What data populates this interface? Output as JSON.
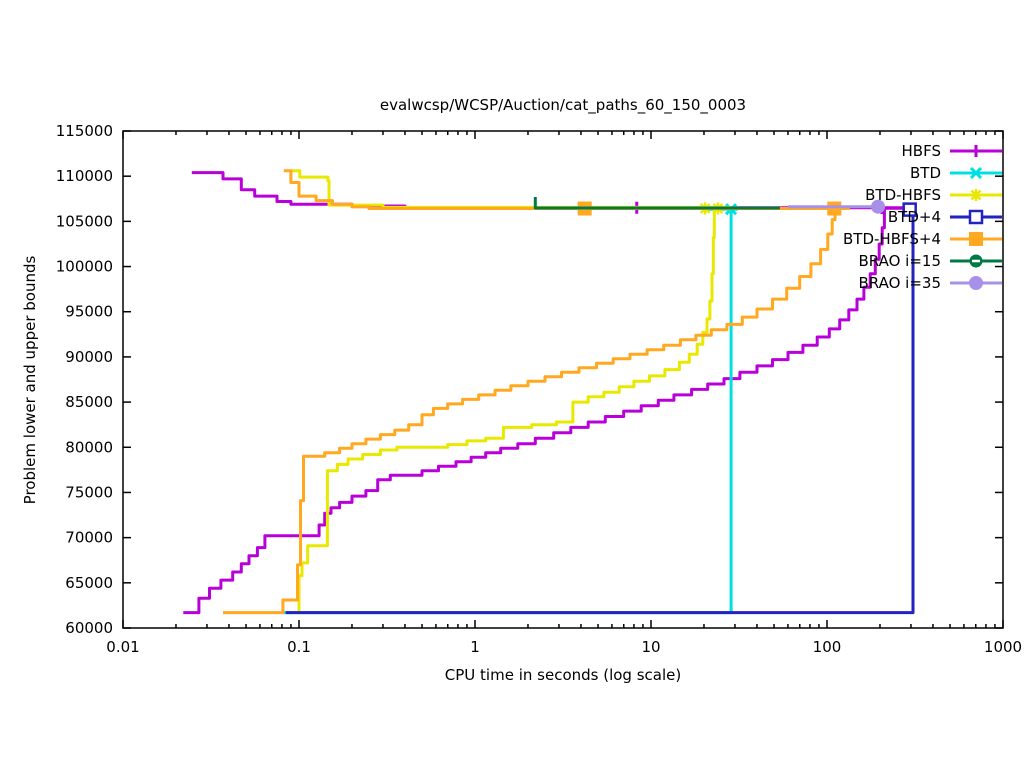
{
  "chart_data": {
    "type": "line",
    "title": "evalwcsp/WCSP/Auction/cat_paths_60_150_0003",
    "xlabel": "CPU time in seconds (log scale)",
    "ylabel": "Problem lower and upper bounds",
    "x_scale": "log",
    "xlim": [
      0.01,
      1000
    ],
    "ylim": [
      60000,
      115000
    ],
    "grid": false,
    "legend_position": "top-right-inside",
    "background_color": "#ffffff",
    "border_color": "#000000",
    "text_color": "#000000",
    "x_ticks": [
      {
        "value": 0.01,
        "label": "0.01"
      },
      {
        "value": 0.1,
        "label": "0.1"
      },
      {
        "value": 1,
        "label": "1"
      },
      {
        "value": 10,
        "label": "10"
      },
      {
        "value": 100,
        "label": "100"
      },
      {
        "value": 1000,
        "label": "1000"
      }
    ],
    "y_ticks": [
      {
        "value": 60000,
        "label": "60000"
      },
      {
        "value": 65000,
        "label": "65000"
      },
      {
        "value": 70000,
        "label": "70000"
      },
      {
        "value": 75000,
        "label": "75000"
      },
      {
        "value": 80000,
        "label": "80000"
      },
      {
        "value": 85000,
        "label": "85000"
      },
      {
        "value": 90000,
        "label": "90000"
      },
      {
        "value": 95000,
        "label": "95000"
      },
      {
        "value": 100000,
        "label": "100000"
      },
      {
        "value": 105000,
        "label": "105000"
      },
      {
        "value": 110000,
        "label": "110000"
      },
      {
        "value": 115000,
        "label": "115000"
      }
    ],
    "series": [
      {
        "name": "HBFS",
        "color": "#b800d8",
        "marker": "plus",
        "markers_at": [
          [
            8.3,
            106500
          ],
          [
            205,
            106480
          ]
        ],
        "paths": [
          {
            "steps": true,
            "points": [
              [
                0.0246,
                110400
              ],
              [
                0.037,
                109700
              ],
              [
                0.047,
                108500
              ],
              [
                0.056,
                107800
              ],
              [
                0.075,
                107200
              ],
              [
                0.09,
                106900
              ],
              [
                0.2,
                106700
              ],
              [
                0.4,
                106500
              ],
              [
                290,
                106500
              ]
            ]
          },
          {
            "steps": true,
            "points": [
              [
                0.022,
                61700
              ],
              [
                0.027,
                63300
              ],
              [
                0.031,
                64400
              ],
              [
                0.036,
                65300
              ],
              [
                0.042,
                66200
              ],
              [
                0.047,
                67100
              ],
              [
                0.052,
                68000
              ],
              [
                0.058,
                68900
              ],
              [
                0.064,
                70200
              ],
              [
                0.13,
                71400
              ],
              [
                0.14,
                72700
              ],
              [
                0.152,
                73300
              ],
              [
                0.17,
                73900
              ],
              [
                0.2,
                74600
              ],
              [
                0.24,
                75200
              ],
              [
                0.28,
                76400
              ],
              [
                0.33,
                76900
              ],
              [
                0.5,
                77400
              ],
              [
                0.62,
                77900
              ],
              [
                0.78,
                78400
              ],
              [
                0.95,
                78900
              ],
              [
                1.15,
                79400
              ],
              [
                1.4,
                79900
              ],
              [
                1.75,
                80400
              ],
              [
                2.2,
                81000
              ],
              [
                2.8,
                81600
              ],
              [
                3.5,
                82200
              ],
              [
                4.4,
                82800
              ],
              [
                5.5,
                83400
              ],
              [
                7,
                84000
              ],
              [
                8.8,
                84600
              ],
              [
                11,
                85200
              ],
              [
                13.5,
                85800
              ],
              [
                17,
                86400
              ],
              [
                21,
                87000
              ],
              [
                26,
                87600
              ],
              [
                32,
                88300
              ],
              [
                40,
                89000
              ],
              [
                49,
                89700
              ],
              [
                60,
                90500
              ],
              [
                73,
                91300
              ],
              [
                88,
                92200
              ],
              [
                103,
                93100
              ],
              [
                118,
                94100
              ],
              [
                133,
                95200
              ],
              [
                148,
                96400
              ],
              [
                162,
                97700
              ],
              [
                176,
                99200
              ],
              [
                188,
                100800
              ],
              [
                198,
                102500
              ],
              [
                206,
                104300
              ],
              [
                212,
                106450
              ],
              [
                290,
                106450
              ]
            ]
          }
        ]
      },
      {
        "name": "BTD",
        "color": "#00e0e0",
        "marker": "x",
        "markers_at": [
          [
            28.5,
            106350
          ]
        ],
        "paths": [
          {
            "steps": true,
            "points": [
              [
                0.08,
                61700
              ],
              [
                28.5,
                106350
              ]
            ]
          },
          {
            "steps": false,
            "points": [
              [
                20,
                106350
              ],
              [
                31,
                106350
              ]
            ]
          }
        ]
      },
      {
        "name": "BTD-HBFS",
        "color": "#e8e800",
        "marker": "asterisk",
        "markers_at": [
          [
            20.3,
            106420
          ],
          [
            24,
            106420
          ]
        ],
        "paths": [
          {
            "steps": true,
            "points": [
              [
                0.09,
                110600
              ],
              [
                0.101,
                109900
              ],
              [
                0.146,
                109500
              ],
              [
                0.148,
                106800
              ],
              [
                0.3,
                106550
              ],
              [
                28.5,
                106550
              ]
            ]
          },
          {
            "steps": true,
            "points": [
              [
                0.095,
                61700
              ],
              [
                0.1,
                65800
              ],
              [
                0.104,
                67200
              ],
              [
                0.112,
                69100
              ],
              [
                0.145,
                77400
              ],
              [
                0.165,
                78100
              ],
              [
                0.19,
                78700
              ],
              [
                0.23,
                79200
              ],
              [
                0.29,
                79700
              ],
              [
                0.36,
                80000
              ],
              [
                0.7,
                80300
              ],
              [
                0.9,
                80700
              ],
              [
                1.15,
                81000
              ],
              [
                1.45,
                82200
              ],
              [
                2.1,
                82500
              ],
              [
                2.9,
                82800
              ],
              [
                3.6,
                85000
              ],
              [
                4.4,
                85600
              ],
              [
                5.4,
                86100
              ],
              [
                6.6,
                86700
              ],
              [
                8,
                87300
              ],
              [
                9.8,
                87900
              ],
              [
                12,
                88600
              ],
              [
                14.5,
                89400
              ],
              [
                16.5,
                90300
              ],
              [
                18.3,
                91400
              ],
              [
                19.7,
                92700
              ],
              [
                20.8,
                94200
              ],
              [
                21.6,
                96200
              ],
              [
                22.2,
                99200
              ],
              [
                22.6,
                103200
              ],
              [
                22.9,
                106400
              ],
              [
                28.5,
                106400
              ]
            ]
          }
        ]
      },
      {
        "name": "BTD+4",
        "color": "#2222c2",
        "marker": "square-open",
        "markers_at": [
          [
            295,
            106300
          ]
        ],
        "paths": [
          {
            "steps": true,
            "points": [
              [
                0.084,
                61700
              ],
              [
                308,
                106300
              ]
            ]
          }
        ]
      },
      {
        "name": "BTD-HBFS+4",
        "color": "#ffa820",
        "marker": "square-filled",
        "markers_at": [
          [
            4.2,
            106420
          ],
          [
            110,
            106420
          ]
        ],
        "paths": [
          {
            "steps": true,
            "points": [
              [
                0.082,
                110600
              ],
              [
                0.09,
                109300
              ],
              [
                0.1,
                107800
              ],
              [
                0.125,
                107300
              ],
              [
                0.155,
                106900
              ],
              [
                0.2,
                106600
              ],
              [
                0.25,
                106420
              ],
              [
                135,
                106420
              ]
            ]
          },
          {
            "steps": true,
            "points": [
              [
                0.037,
                61700
              ],
              [
                0.081,
                63100
              ],
              [
                0.098,
                67000
              ],
              [
                0.102,
                74100
              ],
              [
                0.106,
                79000
              ],
              [
                0.14,
                79400
              ],
              [
                0.17,
                79900
              ],
              [
                0.2,
                80400
              ],
              [
                0.24,
                80900
              ],
              [
                0.29,
                81400
              ],
              [
                0.35,
                81900
              ],
              [
                0.42,
                82500
              ],
              [
                0.5,
                83600
              ],
              [
                0.58,
                84300
              ],
              [
                0.7,
                84800
              ],
              [
                0.85,
                85300
              ],
              [
                1.05,
                85800
              ],
              [
                1.3,
                86300
              ],
              [
                1.6,
                86800
              ],
              [
                2,
                87300
              ],
              [
                2.5,
                87800
              ],
              [
                3.1,
                88300
              ],
              [
                3.9,
                88800
              ],
              [
                4.9,
                89300
              ],
              [
                6.1,
                89800
              ],
              [
                7.6,
                90300
              ],
              [
                9.5,
                90800
              ],
              [
                11.8,
                91300
              ],
              [
                14.7,
                91900
              ],
              [
                18,
                92400
              ],
              [
                22,
                93000
              ],
              [
                27,
                93600
              ],
              [
                33,
                94400
              ],
              [
                40,
                95300
              ],
              [
                49,
                96400
              ],
              [
                59,
                97600
              ],
              [
                70,
                98900
              ],
              [
                81,
                100300
              ],
              [
                92,
                101900
              ],
              [
                101,
                103600
              ],
              [
                107,
                105200
              ],
              [
                111,
                106420
              ],
              [
                135,
                106420
              ]
            ]
          }
        ]
      },
      {
        "name": "BRAO i=15",
        "color": "#007a45",
        "marker": "circle-dash",
        "markers_at": [],
        "paths": [
          {
            "steps": false,
            "points": [
              [
                2.2,
                107700
              ],
              [
                2.2,
                106480
              ],
              [
                54,
                106480
              ]
            ]
          }
        ]
      },
      {
        "name": "BRAO i=35",
        "color": "#a890e8",
        "marker": "circle-filled",
        "markers_at": [
          [
            195,
            106620
          ]
        ],
        "paths": [
          {
            "steps": false,
            "points": [
              [
                60,
                106620
              ],
              [
                195,
                106620
              ]
            ]
          }
        ]
      }
    ]
  }
}
